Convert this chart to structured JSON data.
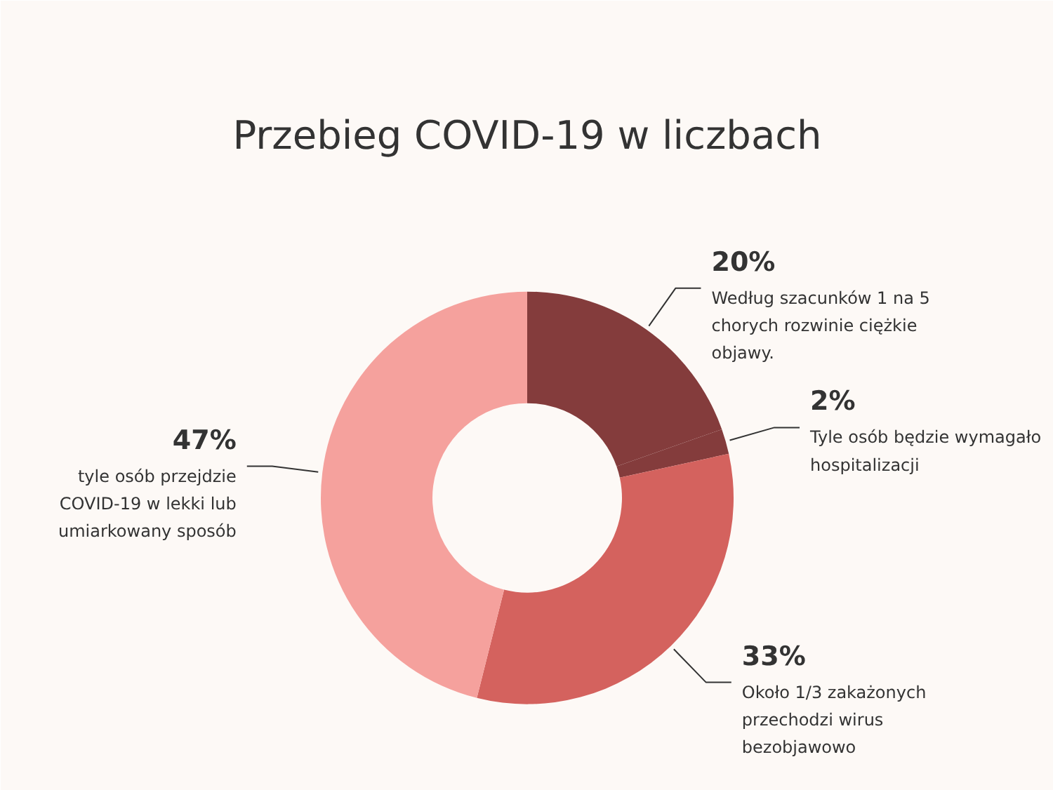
{
  "chart_data": {
    "type": "donut",
    "title": "Przebieg COVID-19 w liczbach",
    "categories": [
      "Według szacunków 1 na 5 chorych rozwinie ciężkie objawy.",
      "Tyle osób będzie wymagało hospitalizacji",
      "Około 1/3 zakażonych przechodzi wirus bezobjawowo",
      "tyle osób przejdzie COVID-19 w lekki lub umiarkowany sposób"
    ],
    "values": [
      20,
      2,
      33,
      47
    ],
    "value_labels": [
      "20%",
      "2%",
      "33%",
      "47%"
    ],
    "colors": [
      "#843c3c",
      "#843c3c",
      "#d4625e",
      "#f5a19d"
    ]
  }
}
